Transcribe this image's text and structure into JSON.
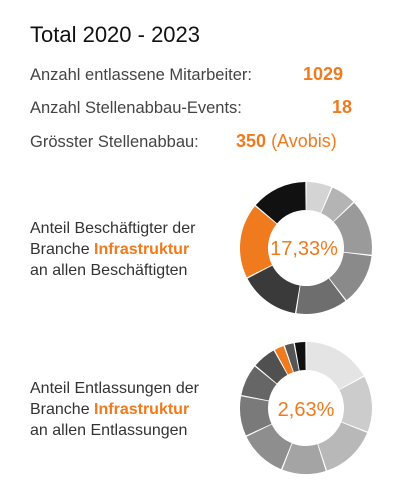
{
  "title": "Total 2020 - 2023",
  "stats": [
    {
      "label": "Anzahl entlassene Mitarbeiter:",
      "value": "1029"
    },
    {
      "label": "Anzahl Stellenabbau-Events:",
      "value": "18"
    },
    {
      "label": "Grösster Stellenabbau:",
      "value": "350",
      "suffix": "(Avobis)"
    }
  ],
  "colors": {
    "accent": "#f07a1e"
  },
  "chart_data": [
    {
      "type": "pie",
      "center_label": "17,33%",
      "description_before": "Anteil Beschäftigter der",
      "description_mid_before": "Branche ",
      "highlight": "Infrastruktur",
      "description_after": "an allen Beschäftigten",
      "highlight_value": 17.33,
      "values": [
        6,
        6,
        13,
        12,
        12,
        14,
        17.33,
        13
      ],
      "colors": [
        "#d4d4d4",
        "#b4b4b4",
        "#9a9a9a",
        "#8a8a8a",
        "#6e6e6e",
        "#3a3a3a",
        "#f07a1e",
        "#111111"
      ]
    },
    {
      "type": "pie",
      "center_label": "2,63%",
      "description_before": "Anteil Entlassungen der",
      "description_mid_before": "Branche ",
      "highlight": "Infrastruktur",
      "description_after": "an allen Entlassungen",
      "highlight_value": 2.63,
      "values": [
        17,
        14,
        14,
        11,
        12,
        10,
        8,
        6,
        2.63,
        2.5,
        2.87
      ],
      "colors": [
        "#e4e4e4",
        "#cccccc",
        "#b8b8b8",
        "#a4a4a4",
        "#8e8e8e",
        "#7a7a7a",
        "#666666",
        "#505050",
        "#f07a1e",
        "#555555",
        "#111111"
      ]
    }
  ]
}
